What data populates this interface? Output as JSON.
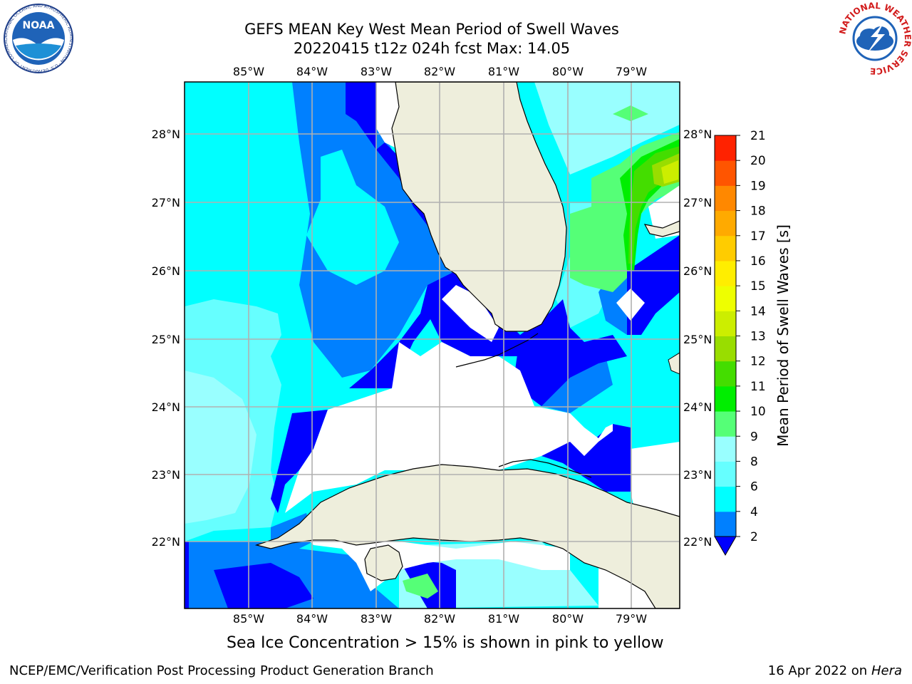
{
  "title_line1": "GEFS MEAN Key West Mean Period of Swell Waves",
  "title_line2": "20220415 t12z 024h fcst   Max: 14.05",
  "lon_labels": [
    "85°W",
    "84°W",
    "83°W",
    "82°W",
    "81°W",
    "80°W",
    "79°W"
  ],
  "lat_labels": [
    "28°N",
    "27°N",
    "26°N",
    "25°N",
    "24°N",
    "23°N",
    "22°N"
  ],
  "colorbar": {
    "label": "Mean Period of Swell Waves [s]",
    "ticks": [
      "21",
      "20",
      "19",
      "18",
      "17",
      "16",
      "15",
      "14",
      "13",
      "12",
      "11",
      "10",
      "9",
      "8",
      "6",
      "4",
      "2"
    ],
    "colors": [
      "#0000ff",
      "#0080ff",
      "#00ffff",
      "#66ffff",
      "#99ffff",
      "#55ff77",
      "#00ee00",
      "#44dd00",
      "#99dd00",
      "#ccee00",
      "#eeff00",
      "#ffee00",
      "#ffcc00",
      "#ffaa00",
      "#ff8800",
      "#ff5500",
      "#ff2200",
      "#ff0000"
    ]
  },
  "ice_note": "Sea Ice Concentration > 15% is shown in pink to yellow",
  "footer_left": "NCEP/EMC/Verification Post Processing Product Generation Branch",
  "footer_date": "16 Apr 2022 on",
  "footer_host": "Hera",
  "noaa_logo": {
    "text": "NOAA",
    "ring_text": "NATIONAL OCEANIC AND ATMOSPHERIC ADMINISTRATION · U.S. DEPARTMENT OF COMMERCE"
  },
  "nws_logo": {
    "ring_text": "NATIONAL WEATHER SERVICE"
  },
  "colors": {
    "land": "#eeeedc",
    "no_data": "#ffffff",
    "grid": "#b0b0b0"
  }
}
